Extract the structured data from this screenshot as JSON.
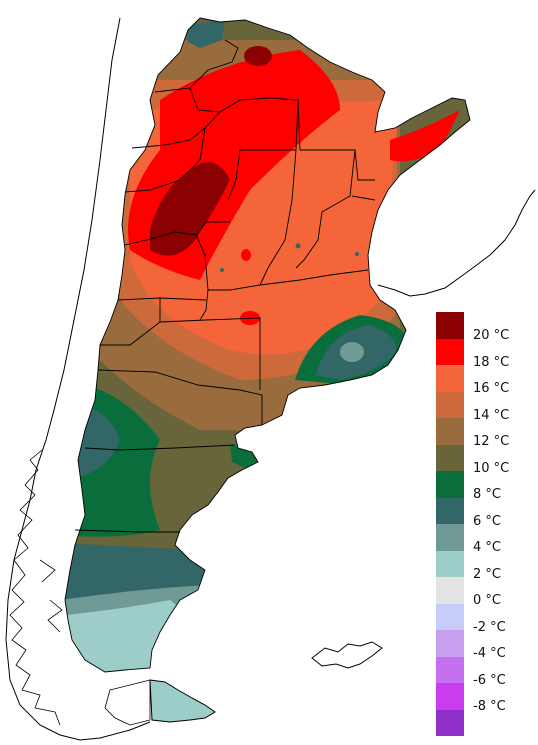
{
  "legend": {
    "items": [
      {
        "label": "20 °C",
        "color": "#8b0000"
      },
      {
        "label": "18 °C",
        "color": "#ff0000"
      },
      {
        "label": "16 °C",
        "color": "#f4663a"
      },
      {
        "label": "14 °C",
        "color": "#cc6a3c"
      },
      {
        "label": "12 °C",
        "color": "#9a6b3c"
      },
      {
        "label": "10 °C",
        "color": "#68653a"
      },
      {
        "label": "8 °C",
        "color": "#0a6e3c"
      },
      {
        "label": "6 °C",
        "color": "#336666"
      },
      {
        "label": "4 °C",
        "color": "#6f9a96"
      },
      {
        "label": "2 °C",
        "color": "#9ccdc9"
      },
      {
        "label": "0 °C",
        "color": "#e4e4e4"
      },
      {
        "label": "-2 °C",
        "color": "#c8ccf8"
      },
      {
        "label": "-4 °C",
        "color": "#c8a0f0"
      },
      {
        "label": "-6 °C",
        "color": "#c470f0"
      },
      {
        "label": "-8 °C",
        "color": "#c93cf0"
      },
      {
        "label": "",
        "color": "#8e30c8"
      }
    ]
  }
}
